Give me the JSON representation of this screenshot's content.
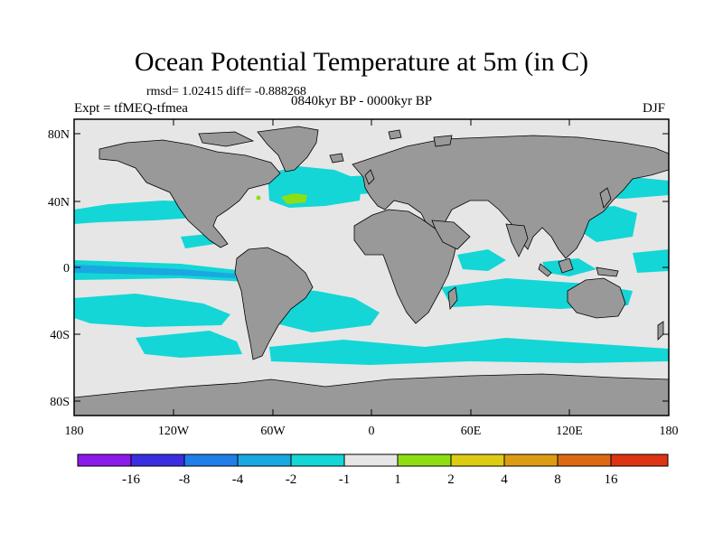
{
  "title": "Ocean Potential Temperature at 5m (in C)",
  "stats": "rmsd= 1.02415 diff= -0.888268",
  "experiment": "Expt = tfMEQ-tfmea",
  "period": "0840kyr BP - 0000kyr BP",
  "season": "DJF",
  "lat_labels": [
    "80N",
    "40N",
    "0",
    "40S",
    "80S"
  ],
  "lon_labels": [
    "180",
    "120W",
    "60W",
    "0",
    "60E",
    "120E",
    "180"
  ],
  "colorbar": {
    "colors": [
      "#8c1aeb",
      "#3a2fe0",
      "#1f7ee8",
      "#1aa8e0",
      "#14d6d6",
      "#e6e6e6",
      "#8ede14",
      "#dccc14",
      "#dc9c14",
      "#dc6a14",
      "#dc3414"
    ],
    "labels": [
      "-16",
      "-8",
      "-4",
      "-2",
      "-1",
      "1",
      "2",
      "4",
      "8",
      "16"
    ]
  },
  "colors": {
    "land": "#999999",
    "ocean_neutral": "#e6e6e6",
    "cool_anomaly": "#14d6d6",
    "mid_cool_anomaly": "#1aa8e0",
    "warm_anomaly": "#8ede14",
    "coast": "#000000"
  }
}
